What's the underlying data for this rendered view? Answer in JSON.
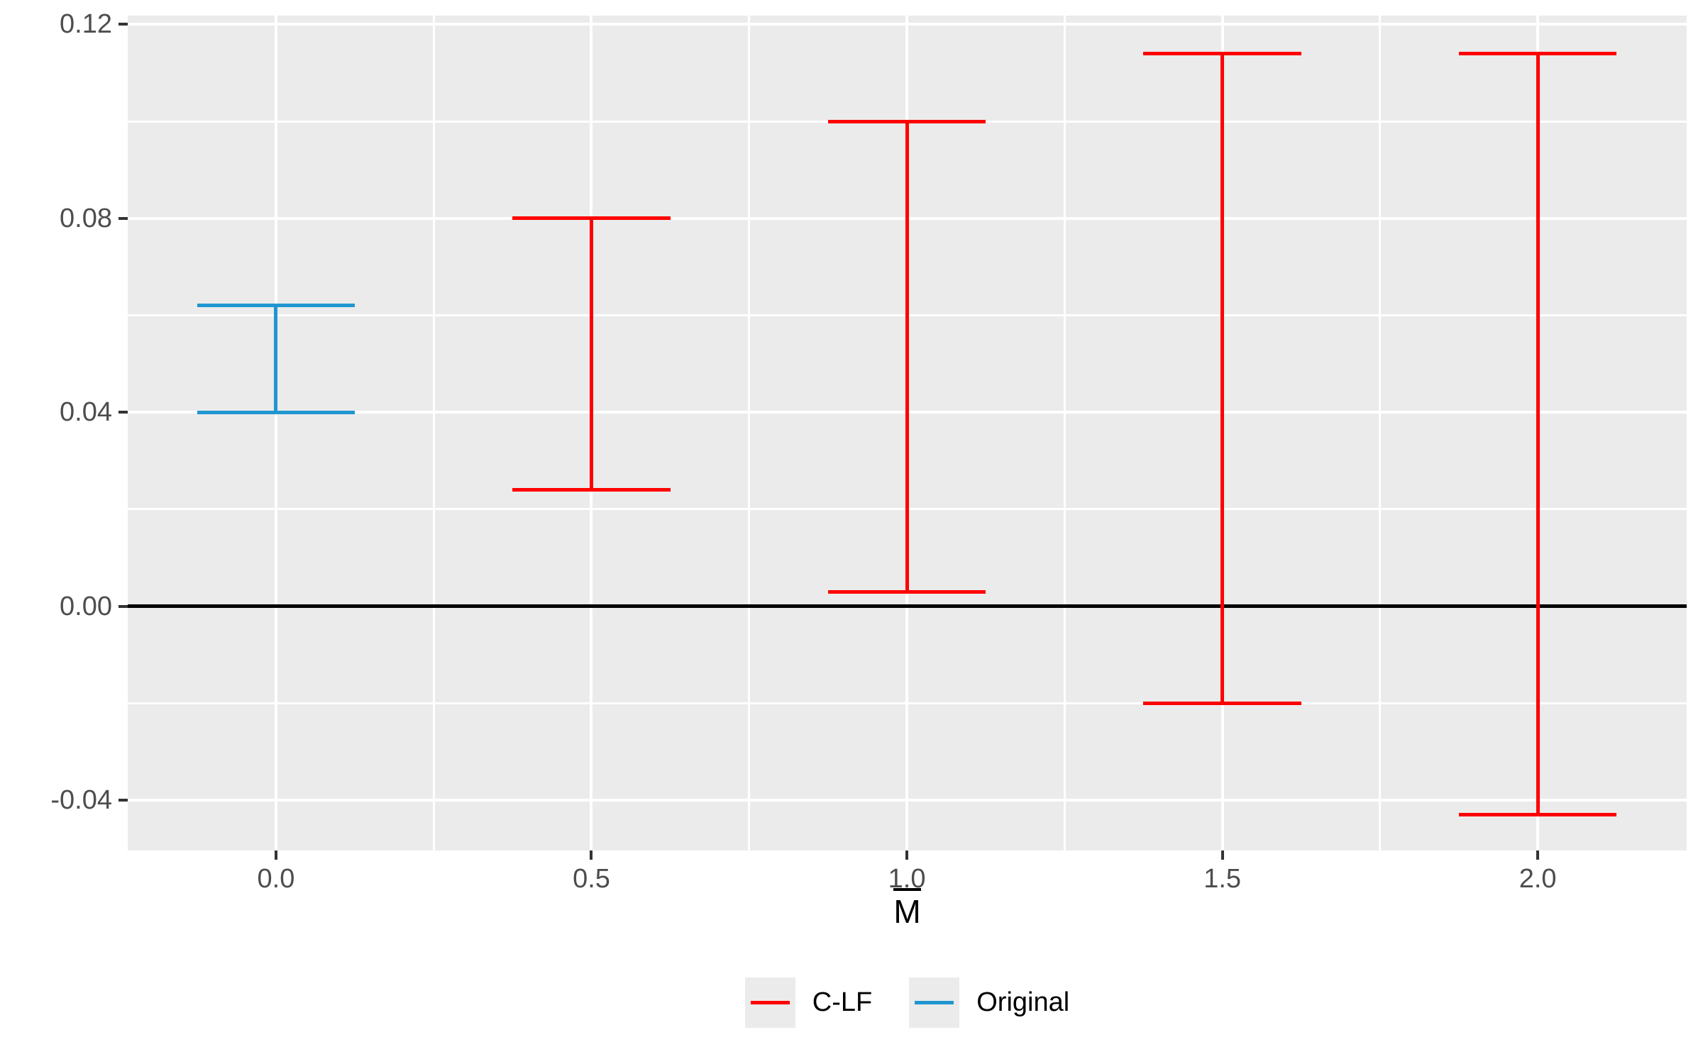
{
  "chart_data": {
    "type": "errorbar",
    "title": "",
    "xlabel": "M",
    "xlabel_overline": true,
    "ylabel": "",
    "legend_position": "bottom",
    "x_ticks": [
      {
        "v": 0.0,
        "label": "0.0"
      },
      {
        "v": 0.5,
        "label": "0.5"
      },
      {
        "v": 1.0,
        "label": "1.0"
      },
      {
        "v": 1.5,
        "label": "1.5"
      },
      {
        "v": 2.0,
        "label": "2.0"
      }
    ],
    "y_ticks": [
      {
        "v": 0.12,
        "label": "0.12"
      },
      {
        "v": 0.08,
        "label": "0.08"
      },
      {
        "v": 0.04,
        "label": "0.04"
      },
      {
        "v": 0.0,
        "label": "0.00"
      },
      {
        "v": -0.04,
        "label": "-0.04"
      }
    ],
    "x_minor": [
      0.25,
      0.75,
      1.25,
      1.75
    ],
    "y_minor": [
      0.1,
      0.06,
      0.02,
      -0.02
    ],
    "xlim": [
      -0.235,
      2.236
    ],
    "ylim": [
      -0.0504,
      0.1218
    ],
    "hline_y": 0,
    "cap_halfwidth": 0.125,
    "grid_on": true,
    "series": [
      {
        "name": "C-LF",
        "color": "#FF0000",
        "points": [
          {
            "x": 0.5,
            "ymin": 0.024,
            "ymax": 0.08
          },
          {
            "x": 1.0,
            "ymin": 0.003,
            "ymax": 0.1
          },
          {
            "x": 1.5,
            "ymin": -0.02,
            "ymax": 0.114
          },
          {
            "x": 2.0,
            "ymin": -0.043,
            "ymax": 0.114
          }
        ]
      },
      {
        "name": "Original",
        "color": "#2096D0",
        "points": [
          {
            "x": 0.0,
            "ymin": 0.04,
            "ymax": 0.062
          }
        ]
      }
    ],
    "colors": {
      "panel_bg": "#EBEBEB",
      "grid": "#FFFFFF",
      "hline": "#000000",
      "tick_mark": "#333333",
      "axis_text": "#4D4D4D",
      "axis_title": "#000000"
    }
  }
}
